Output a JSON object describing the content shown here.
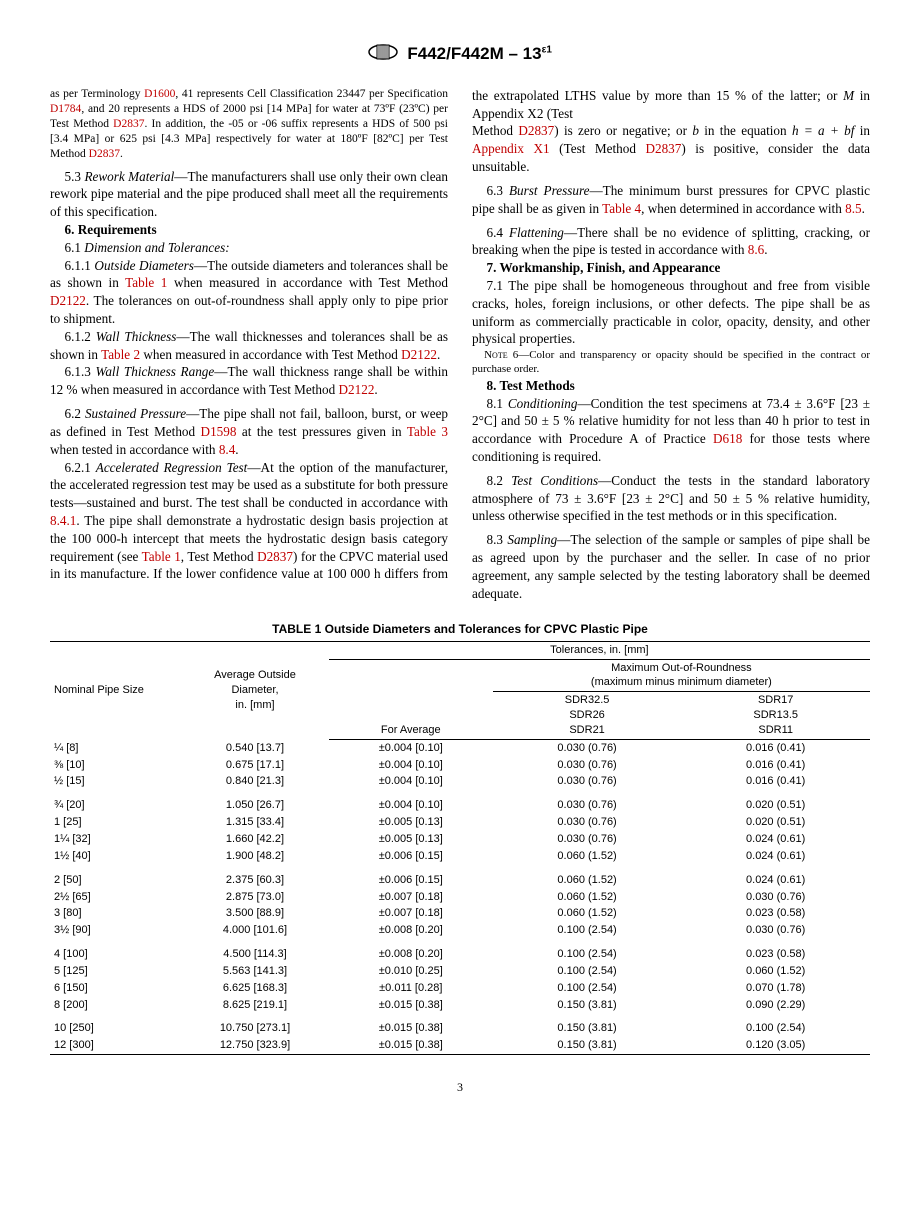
{
  "header": {
    "designation": "F442/F442M – 13",
    "epsilon": "ε1"
  },
  "col_left": {
    "intro_small": {
      "t1a": "as per Terminology ",
      "r1": "D1600",
      "t1b": ", 41 represents Cell Classification 23447 per Specification ",
      "r2": "D1784",
      "t1c": ", and 20 represents a HDS of 2000 psi [14 MPa] for water at 73ºF (23ºC) per Test Method ",
      "r3": "D2837",
      "t1d": ". In addition, the -05 or -06 suffix represents a HDS of 500 psi [3.4 MPa] or 625 psi [4.3 MPa] respectively for water at 180ºF [82ºC] per Test Method ",
      "r4": "D2837",
      "t1e": "."
    },
    "p53_lead": "5.3 ",
    "p53_head": "Rework Material",
    "p53_body": "—The manufacturers shall use only their own clean rework pipe material and the pipe produced shall meet all the requirements of this specification.",
    "s6": "6.  Requirements",
    "p61": "6.1 ",
    "p61_i": "Dimension and Tolerances:",
    "p611_lead": "6.1.1 ",
    "p611_head": "Outside Diameters",
    "p611_a": "—The outside diameters and tolerances shall be as shown in ",
    "p611_ref1": "Table 1",
    "p611_b": " when measured in accordance with Test Method ",
    "p611_ref2": "D2122",
    "p611_c": ". The tolerances on out-of-roundness shall apply only to pipe prior to shipment.",
    "p612_lead": "6.1.2 ",
    "p612_head": "Wall Thickness",
    "p612_a": "—The wall thicknesses and tolerances shall be as shown in ",
    "p612_ref1": "Table 2",
    "p612_b": " when measured in accordance with Test Method ",
    "p612_ref2": "D2122",
    "p612_c": ".",
    "p613_lead": "6.1.3 ",
    "p613_head": "Wall Thickness Range",
    "p613_a": "—The wall thickness range shall be within 12 % when measured in accordance with Test Method ",
    "p613_ref1": "D2122",
    "p613_b": ".",
    "p62_lead": "6.2 ",
    "p62_head": "Sustained Pressure",
    "p62_a": "—The pipe shall not fail, balloon, burst, or weep as defined in Test Method ",
    "p62_ref1": "D1598",
    "p62_b": " at the test pressures given in ",
    "p62_ref2": "Table 3",
    "p62_c": " when tested in accordance with ",
    "p62_ref3": "8.4",
    "p62_d": ".",
    "p621_lead": "6.2.1 ",
    "p621_head": "Accelerated Regression Test",
    "p621_a": "—At the option of the manufacturer, the accelerated regression test may be used as a substitute for both pressure tests—sustained and burst. The test shall be conducted in accordance with ",
    "p621_ref1": "8.4.1",
    "p621_b": ". The pipe shall demonstrate a hydrostatic design basis projection at the 100 000-h intercept that meets the hydrostatic design basis category requirement (see ",
    "p621_ref2": "Table 1",
    "p621_c": ", Test Method ",
    "p621_ref3": "D2837",
    "p621_d": ") for the CPVC material used in its manufacture. If the lower confidence value at 100 000 h differs from the extrapolated LTHS value by more than 15 % of the latter; or ",
    "p621_M": "M",
    "p621_e": " in Appendix X2 (Test"
  },
  "col_right": {
    "cont_a": "Method ",
    "cont_ref1": "D2837",
    "cont_b": ") is zero or negative; or ",
    "cont_bi": "b",
    "cont_c": " in the equation ",
    "cont_ci": "h = a + bf",
    "cont_d": " in ",
    "cont_ref2": "Appendix X1",
    "cont_e": " (Test Method ",
    "cont_ref3": "D2837",
    "cont_f": ") is positive, consider the data unsuitable.",
    "p63_lead": "6.3 ",
    "p63_head": "Burst Pressure",
    "p63_a": "—The minimum burst pressures for CPVC plastic pipe shall be as given in ",
    "p63_ref1": "Table 4",
    "p63_b": ", when determined in accordance with ",
    "p63_ref2": "8.5",
    "p63_c": ".",
    "p64_lead": "6.4 ",
    "p64_head": "Flattening",
    "p64_a": "—There shall be no evidence of splitting, cracking, or breaking when the pipe is tested in accordance with ",
    "p64_ref1": "8.6",
    "p64_b": ".",
    "s7": "7.  Workmanship, Finish, and Appearance",
    "p71": "7.1 The pipe shall be homogeneous throughout and free from visible cracks, holes, foreign inclusions, or other defects. The pipe shall be as uniform as commercially practicable in color, opacity, density, and other physical properties.",
    "note6_sc": "Note",
    "note6_rest": " 6—Color and transparency or opacity should be specified in the contract or purchase order.",
    "s8": "8.  Test Methods",
    "p81_lead": "8.1 ",
    "p81_head": "Conditioning",
    "p81_a": "—Condition the test specimens at 73.4 ± 3.6°F [23 ± 2°C] and 50 ± 5 % relative humidity for not less than 40 h prior to test in accordance with Procedure A of Practice ",
    "p81_ref1": "D618",
    "p81_b": " for those tests where conditioning is required.",
    "p82_lead": "8.2 ",
    "p82_head": "Test Conditions",
    "p82_a": "—Conduct the tests in the standard laboratory atmosphere of 73 ± 3.6°F [23 ± 2°C] and 50 ± 5 % relative humidity, unless otherwise specified in the test methods or in this specification.",
    "p83_lead": "8.3 ",
    "p83_head": "Sampling",
    "p83_a": "—The selection of the sample or samples of pipe shall be as agreed upon by the purchaser and the seller. In case of no prior agreement, any sample selected by the testing laboratory shall be deemed adequate."
  },
  "table": {
    "title": "TABLE 1 Outside Diameters and Tolerances for CPVC Plastic Pipe",
    "h_nominal": "Nominal Pipe Size",
    "h_avg": "Average Outside\nDiameter,\nin. [mm]",
    "h_tol": "Tolerances, in. [mm]",
    "h_foravg": "For Average",
    "h_maxoor": "Maximum Out-of-Roundness\n(maximum minus minimum diameter)",
    "h_sdr_a": "SDR32.5\nSDR26\nSDR21",
    "h_sdr_b": "SDR17\nSDR13.5\nSDR11",
    "rows": [
      {
        "n": "¼ [8]",
        "d": "0.540 [13.7]",
        "a": "±0.004 [0.10]",
        "o1": "0.030 (0.76)",
        "o2": "0.016 (0.41)"
      },
      {
        "n": "⅜ [10]",
        "d": "0.675 [17.1]",
        "a": "±0.004 [0.10]",
        "o1": "0.030 (0.76)",
        "o2": "0.016 (0.41)"
      },
      {
        "n": "½ [15]",
        "d": "0.840 [21.3]",
        "a": "±0.004 [0.10]",
        "o1": "0.030 (0.76)",
        "o2": "0.016 (0.41)"
      },
      {
        "gap": true,
        "n": "¾ [20]",
        "d": "1.050 [26.7]",
        "a": "±0.004 [0.10]",
        "o1": "0.030 (0.76)",
        "o2": "0.020 (0.51)"
      },
      {
        "n": "1 [25]",
        "d": "1.315 [33.4]",
        "a": "±0.005 [0.13]",
        "o1": "0.030 (0.76)",
        "o2": "0.020 (0.51)"
      },
      {
        "n": "1¼ [32]",
        "d": "1.660 [42.2]",
        "a": "±0.005 [0.13]",
        "o1": "0.030 (0.76)",
        "o2": "0.024 (0.61)"
      },
      {
        "n": "1½ [40]",
        "d": "1.900 [48.2]",
        "a": "±0.006 [0.15]",
        "o1": "0.060 (1.52)",
        "o2": "0.024 (0.61)"
      },
      {
        "gap": true,
        "n": "2 [50]",
        "d": "2.375 [60.3]",
        "a": "±0.006 [0.15]",
        "o1": "0.060 (1.52)",
        "o2": "0.024 (0.61)"
      },
      {
        "n": "2½ [65]",
        "d": "2.875 [73.0]",
        "a": "±0.007 [0.18]",
        "o1": "0.060 (1.52)",
        "o2": "0.030 (0.76)"
      },
      {
        "n": "3 [80]",
        "d": "3.500 [88.9]",
        "a": "±0.007 [0.18]",
        "o1": "0.060 (1.52)",
        "o2": "0.023 (0.58)"
      },
      {
        "n": "3½ [90]",
        "d": "4.000 [101.6]",
        "a": "±0.008 [0.20]",
        "o1": "0.100 (2.54)",
        "o2": "0.030 (0.76)"
      },
      {
        "gap": true,
        "n": "4 [100]",
        "d": "4.500 [114.3]",
        "a": "±0.008 [0.20]",
        "o1": "0.100 (2.54)",
        "o2": "0.023 (0.58)"
      },
      {
        "n": "5 [125]",
        "d": "5.563 [141.3]",
        "a": "±0.010 [0.25]",
        "o1": "0.100 (2.54)",
        "o2": "0.060 (1.52)"
      },
      {
        "n": "6 [150]",
        "d": "6.625 [168.3]",
        "a": "±0.011 [0.28]",
        "o1": "0.100 (2.54)",
        "o2": "0.070 (1.78)"
      },
      {
        "n": "8 [200]",
        "d": "8.625 [219.1]",
        "a": "±0.015 [0.38]",
        "o1": "0.150 (3.81)",
        "o2": "0.090 (2.29)"
      },
      {
        "gap": true,
        "n": "10 [250]",
        "d": "10.750 [273.1]",
        "a": "±0.015 [0.38]",
        "o1": "0.150 (3.81)",
        "o2": "0.100 (2.54)"
      },
      {
        "n": "12 [300]",
        "d": "12.750 [323.9]",
        "a": "±0.015 [0.38]",
        "o1": "0.150 (3.81)",
        "o2": "0.120 (3.05)"
      }
    ]
  },
  "page_number": "3"
}
